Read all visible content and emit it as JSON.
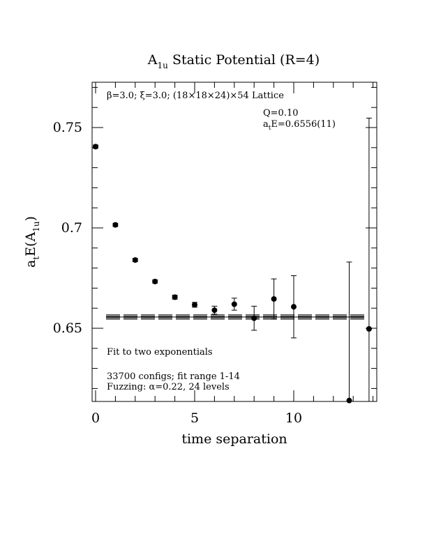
{
  "chart_data": {
    "type": "scatter",
    "title": {
      "main": "A",
      "sub": "1u",
      "rest": " Static Potential (R=4)"
    },
    "ylabel": {
      "a": "a",
      "a_sub": "t",
      "mid": "E(A",
      "sub2": "1u",
      "end": ")"
    },
    "xlabel": "time separation",
    "xlim": [
      0,
      14
    ],
    "ylim": [
      0.6135,
      0.7715
    ],
    "x_ticks": [
      "0",
      "5",
      "10"
    ],
    "y_ticks": [
      "0.65",
      "0.7",
      "0.75"
    ],
    "grid": false,
    "points": [
      {
        "x": 0,
        "y": 0.7405,
        "err": 0.0008
      },
      {
        "x": 1,
        "y": 0.7015,
        "err": 0.0008
      },
      {
        "x": 2,
        "y": 0.684,
        "err": 0.0008
      },
      {
        "x": 3,
        "y": 0.6733,
        "err": 0.0008
      },
      {
        "x": 4,
        "y": 0.6655,
        "err": 0.001
      },
      {
        "x": 5,
        "y": 0.6617,
        "err": 0.0012
      },
      {
        "x": 6,
        "y": 0.659,
        "err": 0.002
      },
      {
        "x": 7,
        "y": 0.662,
        "err": 0.003
      },
      {
        "x": 8,
        "y": 0.655,
        "err": 0.006
      },
      {
        "x": 9,
        "y": 0.6646,
        "err": 0.01
      },
      {
        "x": 10,
        "y": 0.6607,
        "err": 0.0155
      },
      {
        "x": 12.8,
        "y": 0.614,
        "err": 0.069
      },
      {
        "x": 13.8,
        "y": 0.6497,
        "err": 0.105
      }
    ],
    "fit": {
      "value": 0.6556,
      "error": 0.0011,
      "x_range": [
        1,
        13.4
      ]
    },
    "annotations": {
      "lattice": "β=3.0; ξ=3.0; (18×18×24)×54 Lattice",
      "q": "Q=0.10",
      "energy": {
        "a": "a",
        "sub": "t",
        "rest": "E=0.6556(11)"
      },
      "fit_label": "Fit to two exponentials",
      "configs": "33700 configs; fit range 1-14",
      "fuzzing": "Fuzzing: α=0.22, 24 levels"
    }
  }
}
